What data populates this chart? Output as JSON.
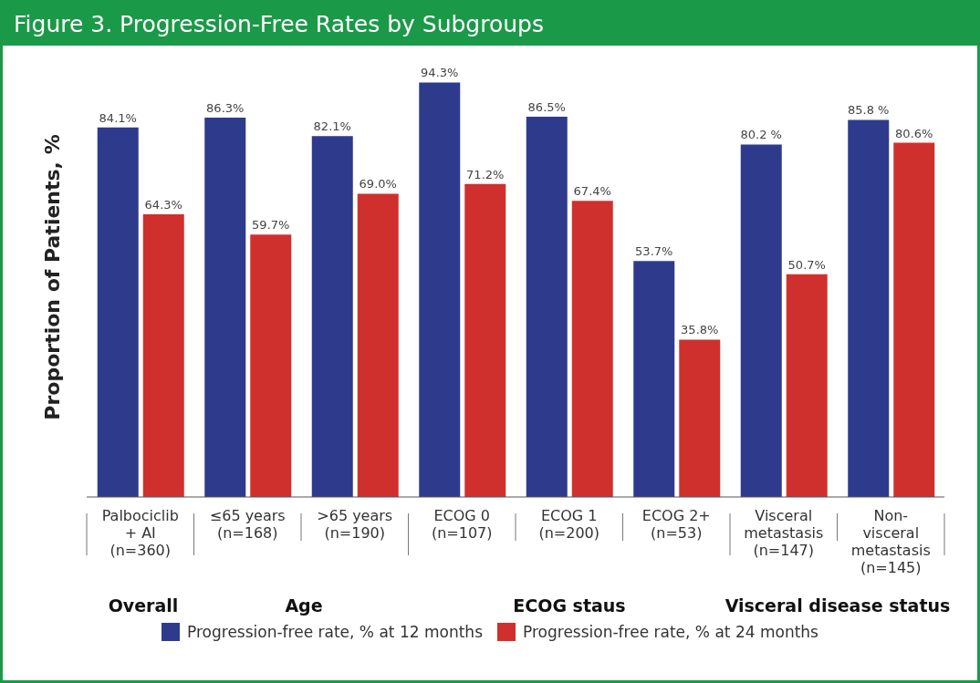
{
  "chart_data": {
    "type": "bar",
    "title": "Figure 3. Progression-Free Rates by Subgroups",
    "ylabel": "Proportion of Patients, %",
    "categories": [
      "Palbociclib\n+ AI\n(n=360)",
      "≤65 years\n(n=168)",
      ">65 years\n(n=190)",
      "ECOG 0\n(n=107)",
      "ECOG 1\n(n=200)",
      "ECOG 2+\n(n=53)",
      "Visceral\nmetastasis\n(n=147)",
      "Non-\nvisceral\nmetastasis\n(n=145)"
    ],
    "series": [
      {
        "name": "Progression-free rate, % at 12 months",
        "color": "#2e3b8c",
        "values": [
          84.1,
          86.3,
          82.1,
          94.3,
          86.5,
          53.7,
          80.2,
          85.8
        ],
        "value_labels": [
          "84.1%",
          "86.3%",
          "82.1%",
          "94.3%",
          "86.5%",
          "53.7%",
          "80.2 %",
          "85.8 %"
        ]
      },
      {
        "name": "Progression-free rate, % at 24 months",
        "color": "#d0302d",
        "values": [
          64.3,
          59.7,
          69.0,
          71.2,
          67.4,
          35.8,
          50.7,
          80.6
        ],
        "value_labels": [
          "64.3%",
          "59.7%",
          "69.0%",
          "71.2%",
          "67.4%",
          "35.8%",
          "50.7%",
          "80.6%"
        ]
      }
    ],
    "annotations": [
      "Overall",
      "Age",
      "ECOG staus",
      "Visceral disease status"
    ],
    "legend": "bottom",
    "grid": false
  }
}
